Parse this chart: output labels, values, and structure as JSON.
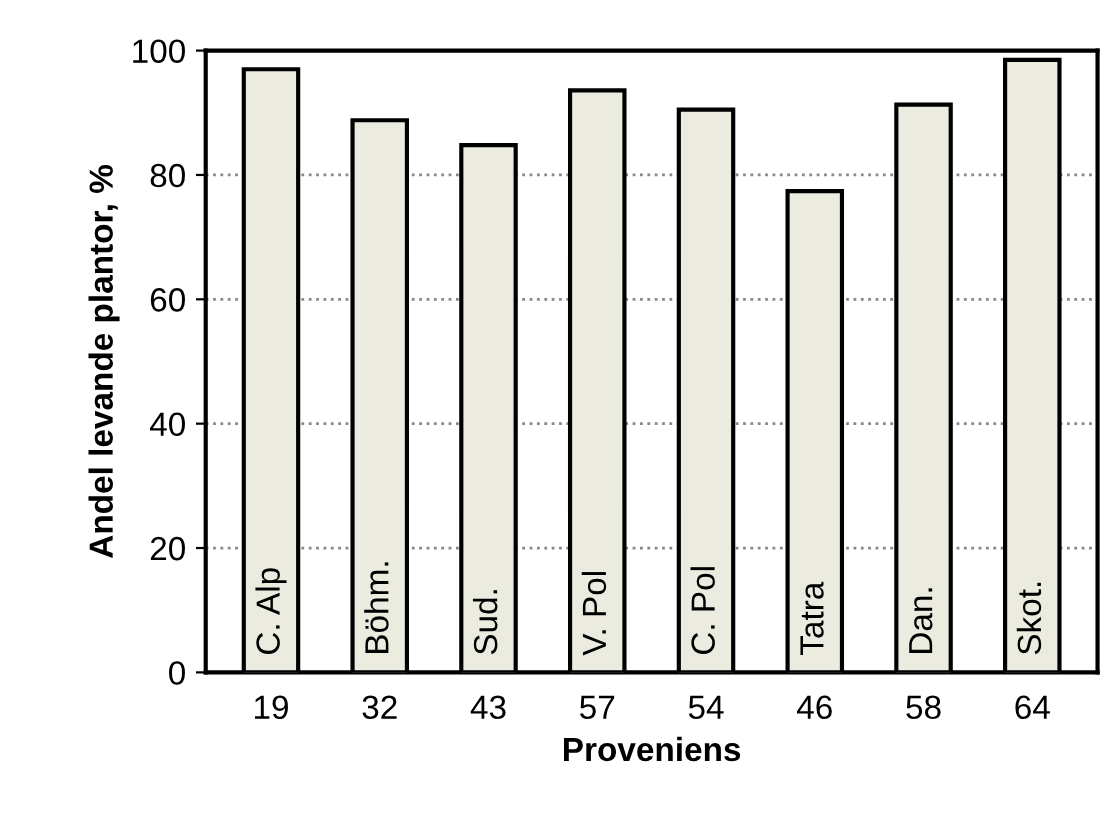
{
  "chart_data": {
    "type": "bar",
    "xlabel": "Proveniens",
    "ylabel": "Andel levande plantor, %",
    "categories": [
      "19",
      "32",
      "43",
      "57",
      "54",
      "46",
      "58",
      "64"
    ],
    "values": [
      97.0,
      88.8,
      84.8,
      93.6,
      90.5,
      77.4,
      91.3,
      98.5
    ],
    "color": "#ecebe0",
    "ylim": [
      0,
      100
    ],
    "yticks": [
      0,
      20,
      40,
      60,
      80,
      100
    ],
    "grid": "y",
    "annotations": [
      "C. Alp",
      "Böhm.",
      "Sud.",
      "V. Pol",
      "C. Pol",
      "Tatra",
      "Dan.",
      "Skot."
    ]
  }
}
